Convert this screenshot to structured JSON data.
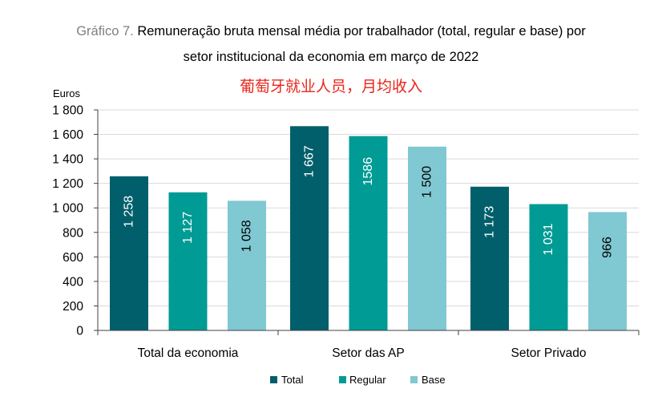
{
  "title": {
    "prefix": "Gráfico 7.",
    "line1": "Remuneração bruta mensal média por trabalhador (total, regular e base) por",
    "line2": "setor institucional da economia em março de 2022"
  },
  "annotation": "葡萄牙就业人员，月均收入",
  "colors": {
    "total": "#005f6b",
    "regular": "#009b94",
    "base": "#80c8d2",
    "grid": "#d9d9d9",
    "axis": "#404040"
  },
  "chart_data": {
    "type": "bar",
    "ylabel": "Euros",
    "xlabel": "",
    "ylim": [
      0,
      1800
    ],
    "ytick_step": 200,
    "ytick_labels": [
      "0",
      "200",
      "400",
      "600",
      "800",
      "1 000",
      "1 200",
      "1 400",
      "1 600",
      "1 800"
    ],
    "categories": [
      "Total da economia",
      "Setor das AP",
      "Setor Privado"
    ],
    "series": [
      {
        "name": "Total",
        "color": "#005f6b",
        "values": [
          1258,
          1667,
          1173
        ],
        "labels": [
          "1 258",
          "1 667",
          "1 173"
        ]
      },
      {
        "name": "Regular",
        "color": "#009b94",
        "values": [
          1127,
          1586,
          1031
        ],
        "labels": [
          "1 127",
          "1586",
          "1 031"
        ]
      },
      {
        "name": "Base",
        "color": "#80c8d2",
        "values": [
          1058,
          1500,
          966
        ],
        "labels": [
          "1 058",
          "1 500",
          "966"
        ]
      }
    ],
    "grid": true,
    "legend_position": "bottom"
  }
}
